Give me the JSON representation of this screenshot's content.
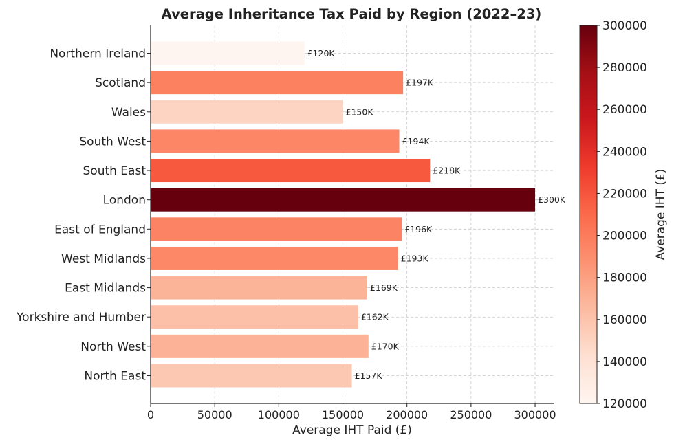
{
  "chart_data": {
    "type": "bar",
    "orientation": "horizontal",
    "title": "Average Inheritance Tax Paid by Region (2022–23)",
    "xlabel": "Average IHT Paid (£)",
    "ylabel": "",
    "categories": [
      "Northern Ireland",
      "Scotland",
      "Wales",
      "South West",
      "South East",
      "London",
      "East of England",
      "West Midlands",
      "East Midlands",
      "Yorkshire and Humber",
      "North West",
      "North East"
    ],
    "values": [
      120000,
      197000,
      150000,
      194000,
      218000,
      300000,
      196000,
      193000,
      169000,
      162000,
      170000,
      157000
    ],
    "data_labels": [
      "£120K",
      "£197K",
      "£150K",
      "£194K",
      "£218K",
      "£300K",
      "£196K",
      "£193K",
      "£169K",
      "£162K",
      "£170K",
      "£157K"
    ],
    "xlim": [
      0,
      315000
    ],
    "xticks": [
      0,
      50000,
      100000,
      150000,
      200000,
      250000,
      300000
    ],
    "grid": true,
    "colormap": "Reds",
    "colorbar": {
      "label": "Average IHT (£)",
      "range": [
        120000,
        300000
      ],
      "ticks": [
        120000,
        140000,
        160000,
        180000,
        200000,
        220000,
        240000,
        260000,
        280000,
        300000
      ]
    }
  }
}
